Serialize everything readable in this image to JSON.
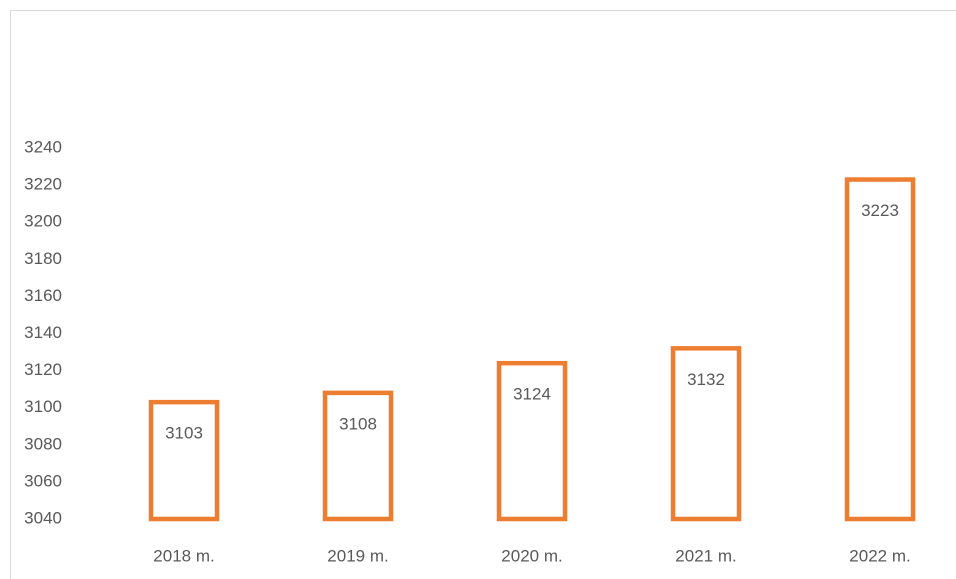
{
  "chart_data": {
    "type": "bar",
    "categories": [
      "2018 m.",
      "2019 m.",
      "2020 m.",
      "2021 m.",
      "2022 m."
    ],
    "values": [
      3103,
      3108,
      3124,
      3132,
      3223
    ],
    "color": "#ed7d31",
    "ylim": [
      3040,
      3240
    ],
    "yticks": [
      3040,
      3060,
      3080,
      3100,
      3120,
      3140,
      3160,
      3180,
      3200,
      3220,
      3240
    ],
    "grid": false
  }
}
